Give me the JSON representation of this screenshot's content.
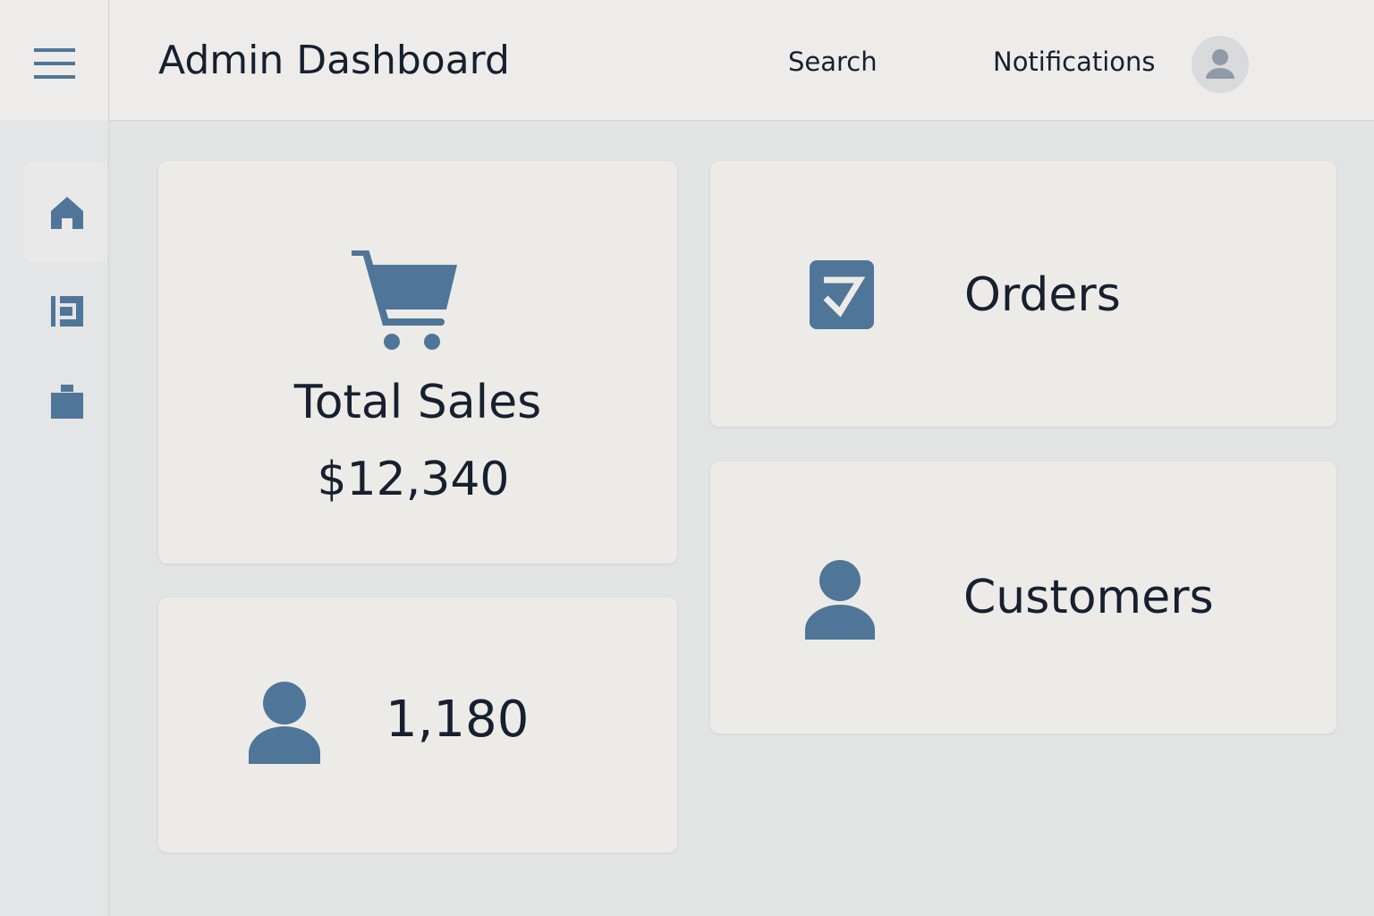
{
  "header": {
    "title": "Admin Dashboard",
    "nav": [
      "Search",
      "Notifications"
    ]
  },
  "cards": {
    "total_sales": {
      "label": "Total Sales",
      "value": "$12,340"
    },
    "users": {
      "value": "1,180"
    },
    "orders": {
      "label": "Orders"
    },
    "customers": {
      "label": "Customers"
    }
  }
}
